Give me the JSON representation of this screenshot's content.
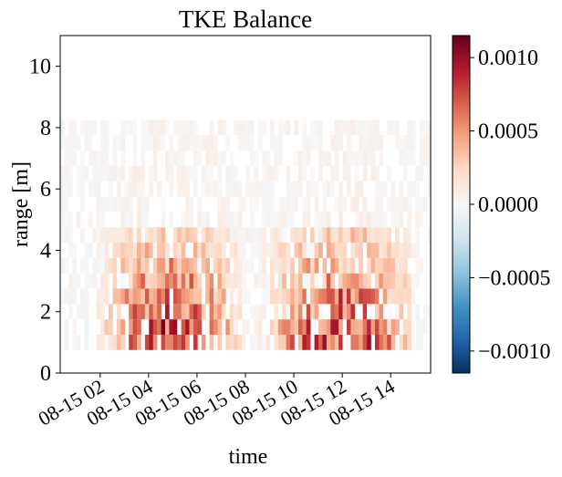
{
  "chart_data": {
    "type": "heatmap",
    "title": "TKE Balance",
    "xlabel": "time",
    "ylabel": "range [m]",
    "x_tick_labels": [
      "08-15 02",
      "08-15 04",
      "08-15 06",
      "08-15 08",
      "08-15 10",
      "08-15 12",
      "08-15 14"
    ],
    "x_tick_hours": [
      2,
      4,
      6,
      8,
      10,
      12,
      14
    ],
    "xlim_hours": [
      0.35,
      15.65
    ],
    "ylim": [
      0,
      11
    ],
    "y_ticks": [
      0,
      2,
      4,
      6,
      8,
      10
    ],
    "range_bins": [
      1,
      1.5,
      2,
      2.5,
      3,
      3.5,
      4,
      4.5,
      5,
      5.5,
      6,
      6.5,
      7,
      7.5,
      8
    ],
    "colorbar": {
      "cmap": "RdBu_r",
      "vmin": -0.00115,
      "vmax": 0.00115,
      "ticks": [
        0.001,
        0.0005,
        0,
        -0.0005,
        -0.001
      ],
      "tick_labels": [
        "0.0010",
        "0.0005",
        "0.0000",
        "−0.0005",
        "−0.0010"
      ]
    },
    "activity_periods": [
      {
        "start_hour": 2.0,
        "end_hour": 7.5,
        "peak_hour": 4.9,
        "peak_value": 0.0011,
        "max_range": 6.5
      },
      {
        "start_hour": 8.5,
        "end_hour": 14.5,
        "peak_hour": 11.9,
        "peak_value": 0.0011,
        "max_range": 6.5
      }
    ]
  }
}
